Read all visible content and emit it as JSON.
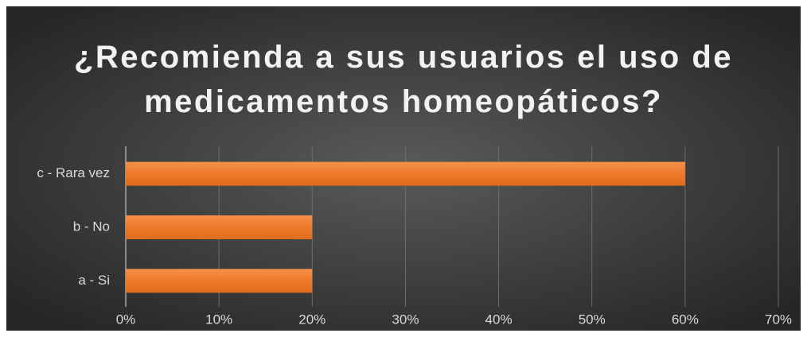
{
  "chart_data": {
    "type": "bar",
    "orientation": "horizontal",
    "title": "¿Recomienda a sus usuarios el uso de medicamentos homeopáticos?",
    "categories": [
      "c - Rara vez",
      "b - No",
      "a - Si"
    ],
    "values": [
      60,
      20,
      20
    ],
    "color": "#f07c2c",
    "xlim": [
      0,
      70
    ],
    "xticks": [
      {
        "value": 0,
        "label": "0%"
      },
      {
        "value": 10,
        "label": "10%"
      },
      {
        "value": 20,
        "label": "20%"
      },
      {
        "value": 30,
        "label": "30%"
      },
      {
        "value": 40,
        "label": "40%"
      },
      {
        "value": 50,
        "label": "50%"
      },
      {
        "value": 60,
        "label": "60%"
      },
      {
        "value": 70,
        "label": "70%"
      }
    ],
    "grid": true
  }
}
